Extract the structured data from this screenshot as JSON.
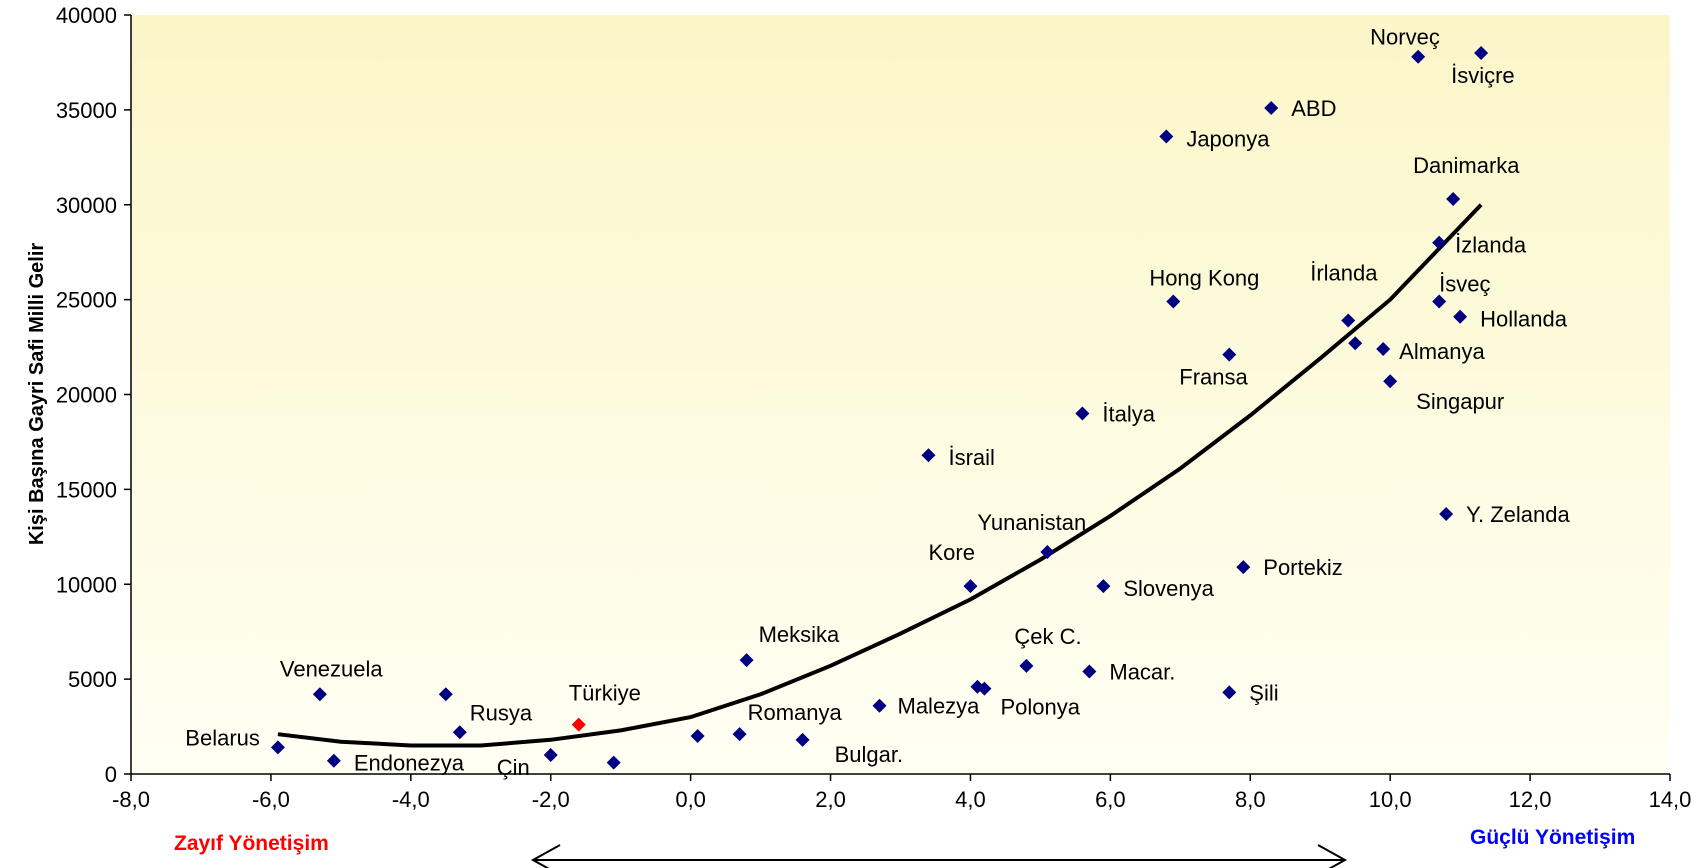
{
  "chart_data": {
    "type": "scatter",
    "ylabel": "Kişi Başına Gayri Safi Milli Gelir",
    "xlabel": "",
    "xlim": [
      -8,
      14
    ],
    "ylim": [
      0,
      40000
    ],
    "x_ticks": [
      "-8,0",
      "-6,0",
      "-4,0",
      "-2,0",
      "0,0",
      "2,0",
      "4,0",
      "6,0",
      "8,0",
      "10,0",
      "12,0",
      "14,0"
    ],
    "y_ticks": [
      "0",
      "5000",
      "10000",
      "15000",
      "20000",
      "25000",
      "30000",
      "35000",
      "40000"
    ],
    "grid": false,
    "points": [
      {
        "label": "Belarus",
        "x": -5.9,
        "y": 1400
      },
      {
        "label": "Venezuela",
        "x": -5.3,
        "y": 4200
      },
      {
        "label": "Endonezya",
        "x": -5.1,
        "y": 700
      },
      {
        "label": "",
        "x": -3.5,
        "y": 4200
      },
      {
        "label": "Rusya",
        "x": -3.3,
        "y": 2200
      },
      {
        "label": "Çin",
        "x": -2.0,
        "y": 1000
      },
      {
        "label": "Türkiye",
        "x": -1.6,
        "y": 2600,
        "highlight": true
      },
      {
        "label": "",
        "x": -1.1,
        "y": 600
      },
      {
        "label": "",
        "x": 0.1,
        "y": 2000
      },
      {
        "label": "Romanya",
        "x": 0.7,
        "y": 2100
      },
      {
        "label": "Meksika",
        "x": 0.8,
        "y": 6000
      },
      {
        "label": "Bulgar.",
        "x": 1.6,
        "y": 1800
      },
      {
        "label": "Malezya",
        "x": 2.7,
        "y": 3600
      },
      {
        "label": "İsrail",
        "x": 3.4,
        "y": 16800
      },
      {
        "label": "Kore",
        "x": 4.0,
        "y": 9900
      },
      {
        "label": "",
        "x": 4.1,
        "y": 4600
      },
      {
        "label": "Polonya",
        "x": 4.2,
        "y": 4500
      },
      {
        "label": "Çek C.",
        "x": 4.8,
        "y": 5700
      },
      {
        "label": "Yunanistan",
        "x": 5.1,
        "y": 11700
      },
      {
        "label": "İtalya",
        "x": 5.6,
        "y": 19000
      },
      {
        "label": "Macar.",
        "x": 5.7,
        "y": 5400
      },
      {
        "label": "Slovenya",
        "x": 5.9,
        "y": 9900
      },
      {
        "label": "Japonya",
        "x": 6.8,
        "y": 33600
      },
      {
        "label": "Hong Kong",
        "x": 6.9,
        "y": 24900
      },
      {
        "label": "Fransa",
        "x": 7.7,
        "y": 22100
      },
      {
        "label": "Şili",
        "x": 7.7,
        "y": 4300
      },
      {
        "label": "Portekiz",
        "x": 7.9,
        "y": 10900
      },
      {
        "label": "ABD",
        "x": 8.3,
        "y": 35100
      },
      {
        "label": "İrlanda",
        "x": 9.4,
        "y": 23900
      },
      {
        "label": "",
        "x": 9.5,
        "y": 22700
      },
      {
        "label": "Almanya",
        "x": 9.9,
        "y": 22400
      },
      {
        "label": "Singapur",
        "x": 10.0,
        "y": 20700
      },
      {
        "label": "Norveç",
        "x": 10.4,
        "y": 37800
      },
      {
        "label": "İzlanda",
        "x": 10.7,
        "y": 28000
      },
      {
        "label": "İsveç",
        "x": 10.7,
        "y": 24900
      },
      {
        "label": "Y. Zelanda",
        "x": 10.8,
        "y": 13700
      },
      {
        "label": "Danimarka",
        "x": 10.9,
        "y": 30300
      },
      {
        "label": "Hollanda",
        "x": 11.0,
        "y": 24100
      },
      {
        "label": "İsviçre",
        "x": 11.3,
        "y": 38000
      }
    ],
    "trend_line": [
      [
        -5.9,
        2100
      ],
      [
        -5.0,
        1700
      ],
      [
        -4.0,
        1500
      ],
      [
        -3.0,
        1500
      ],
      [
        -2.0,
        1800
      ],
      [
        -1.0,
        2300
      ],
      [
        0.0,
        3000
      ],
      [
        1.0,
        4200
      ],
      [
        2.0,
        5700
      ],
      [
        3.0,
        7400
      ],
      [
        4.0,
        9200
      ],
      [
        5.0,
        11300
      ],
      [
        6.0,
        13600
      ],
      [
        7.0,
        16100
      ],
      [
        8.0,
        18900
      ],
      [
        9.0,
        21900
      ],
      [
        10.0,
        25000
      ],
      [
        11.3,
        30000
      ]
    ]
  },
  "annotations": {
    "left_label": "Zayıf Yönetişim",
    "right_label": "Güçlü Yönetişim"
  },
  "colors": {
    "marker": "#000080",
    "highlight": "#ff0000",
    "plot_bg_top": "#fbf6c8",
    "plot_bg_bottom": "#fffff4"
  }
}
